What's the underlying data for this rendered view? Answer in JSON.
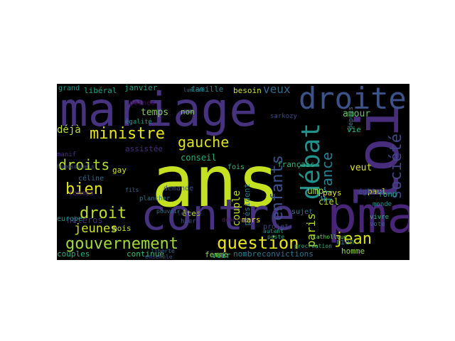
{
  "cloud": {
    "words": [
      {
        "text": "ans",
        "color": "#c5e021"
      },
      {
        "text": "mariage",
        "color": "#46327e"
      },
      {
        "text": "contre",
        "color": "#46327e"
      },
      {
        "text": "loi",
        "color": "#472d7b"
      },
      {
        "text": "pma",
        "color": "#482576"
      },
      {
        "text": "droite",
        "color": "#3b528b"
      },
      {
        "text": "débat",
        "color": "#21918c"
      },
      {
        "text": "ministre",
        "color": "#e7e419"
      },
      {
        "text": "question",
        "color": "#e5e419"
      },
      {
        "text": "gouvernement",
        "color": "#a0da39"
      },
      {
        "text": "jean",
        "color": "#d8e219"
      },
      {
        "text": "droit",
        "color": "#bddf26"
      },
      {
        "text": "droits",
        "color": "#b0dd2f"
      },
      {
        "text": "bien",
        "color": "#e5e419"
      },
      {
        "text": "gauche",
        "color": "#dde318"
      },
      {
        "text": "enfants",
        "color": "#3b528b"
      },
      {
        "text": "société",
        "color": "#414487"
      },
      {
        "text": "france",
        "color": "#26828e"
      },
      {
        "text": "jeunes",
        "color": "#d0e11c"
      },
      {
        "text": "paris",
        "color": "#b5de2b"
      },
      {
        "text": "veux",
        "color": "#31688e"
      },
      {
        "text": "temps",
        "color": "#7ad151"
      },
      {
        "text": "couple",
        "color": "#c2df23"
      },
      {
        "text": "homme",
        "color": "#8fd744"
      },
      {
        "text": "amour",
        "color": "#5ec962"
      },
      {
        "text": "veut",
        "color": "#dae319"
      },
      {
        "text": "ump",
        "color": "#9fda3a"
      },
      {
        "text": "femme",
        "color": "#90d743"
      },
      {
        "text": "fois",
        "color": "#35b779"
      },
      {
        "text": "voir",
        "color": "#28ae80"
      },
      {
        "text": "janvier",
        "color": "#1f9e89"
      },
      {
        "text": "libéral",
        "color": "#1fa088"
      },
      {
        "text": "grand",
        "color": "#1f968b"
      },
      {
        "text": "famille",
        "color": "#25858e"
      },
      {
        "text": "besoin",
        "color": "#c8e020"
      },
      {
        "text": "non",
        "color": "#7fd34e"
      },
      {
        "text": "conseil",
        "color": "#25ac82"
      },
      {
        "text": "français",
        "color": "#2fb47c"
      },
      {
        "text": "président",
        "color": "#2a788e"
      },
      {
        "text": "pays",
        "color": "#e2e418"
      },
      {
        "text": "ciel",
        "color": "#b2dd2d"
      },
      {
        "text": "vie",
        "color": "#2db27d"
      },
      {
        "text": "paul",
        "color": "#c2df23"
      },
      {
        "text": "fond",
        "color": "#1fa188"
      },
      {
        "text": "rien",
        "color": "#2c728e"
      },
      {
        "text": "déjà",
        "color": "#b8de29"
      },
      {
        "text": "hétéros",
        "color": "#472c7a"
      },
      {
        "text": "assistée",
        "color": "#472f7d"
      },
      {
        "text": "gay",
        "color": "#d2e21b"
      },
      {
        "text": "mois",
        "color": "#c0df25"
      },
      {
        "text": "êtes",
        "color": "#b8de29"
      },
      {
        "text": "mars",
        "color": "#fde725"
      },
      {
        "text": "continue",
        "color": "#3dbc74"
      },
      {
        "text": "couples",
        "color": "#29af7f"
      },
      {
        "text": "nombre",
        "color": "#277f8e"
      },
      {
        "text": "convictions",
        "color": "#2c728e"
      },
      {
        "text": "europe",
        "color": "#21918c"
      },
      {
        "text": "demande",
        "color": "#3b528b"
      },
      {
        "text": "céline",
        "color": "#31688e"
      },
      {
        "text": "femmes",
        "color": "#482878"
      },
      {
        "text": "peines",
        "color": "#440154"
      },
      {
        "text": "projet",
        "color": "#3e4989"
      },
      {
        "text": "sujet",
        "color": "#2a788e"
      },
      {
        "text": "église",
        "color": "#3b528b"
      },
      {
        "text": "manif",
        "color": "#46337f"
      },
      {
        "text": "depuis",
        "color": "#238a8d"
      },
      {
        "text": "sarkozy",
        "color": "#3e4989"
      },
      {
        "text": "plancher",
        "color": "#2c728e"
      },
      {
        "text": "égalité",
        "color": "#1f988b"
      },
      {
        "text": "hier",
        "color": "#3b528b"
      },
      {
        "text": "vivre",
        "color": "#35b779"
      },
      {
        "text": "vote",
        "color": "#31688e"
      },
      {
        "text": "cathollque",
        "color": "#6ccd5a"
      },
      {
        "text": "monde",
        "color": "#228c8d"
      },
      {
        "text": "homosexuels",
        "color": "#3e4989"
      },
      {
        "text": "légitime",
        "color": "#453781"
      },
      {
        "text": "lumière",
        "color": "#27808e"
      },
      {
        "text": "fils",
        "color": "#306a8e"
      },
      {
        "text": "pouvoir",
        "color": "#2e6f8e"
      },
      {
        "text": "autant",
        "color": "#1e9b8a"
      },
      {
        "text": "poste",
        "color": "#22a884"
      },
      {
        "text": "procréation",
        "color": "#2db27d"
      },
      {
        "text": "débats",
        "color": "#481a6c"
      },
      {
        "text": "liberté",
        "color": "#31688e"
      },
      {
        "text": "ensemble",
        "color": "#3b528b"
      }
    ]
  }
}
